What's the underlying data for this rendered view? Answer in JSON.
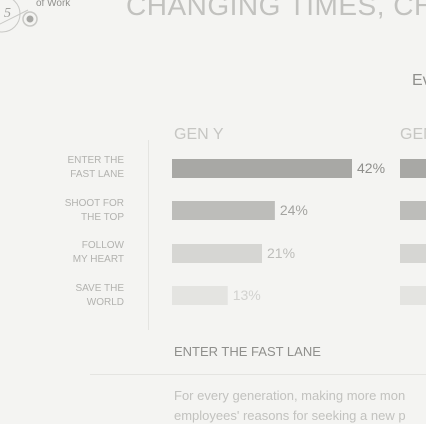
{
  "header": {
    "logo_number": "5",
    "logo_caption": "of Work",
    "title": "CHANGING TIMES, CH",
    "cut_text": "Ev"
  },
  "chart_data": {
    "type": "bar",
    "orientation": "horizontal",
    "categories": [
      [
        "ENTER THE",
        "FAST LANE"
      ],
      [
        "SHOOT FOR",
        "THE TOP"
      ],
      [
        "FOLLOW",
        "MY HEART"
      ],
      [
        "SAVE THE",
        "WORLD"
      ]
    ],
    "series": [
      {
        "name": "GEN Y",
        "values": [
          42,
          24,
          21,
          13
        ],
        "value_labels": [
          "42%",
          "24%",
          "21%",
          "13%"
        ]
      },
      {
        "name": "GEN",
        "values": [
          null,
          null,
          null,
          null
        ],
        "value_labels": [
          "",
          "",
          "",
          ""
        ]
      }
    ],
    "colors": [
      "#a8a8a5",
      "#bdbdba",
      "#d6d6d3",
      "#e4e4e1"
    ],
    "label_colors": [
      "#8f8f8c",
      "#a4a4a1",
      "#bdbdba",
      "#d2d2cf"
    ],
    "xlim": [
      0,
      75
    ],
    "grid": false
  },
  "section": {
    "title": "ENTER THE FAST LANE",
    "body_lines": [
      "For every generation, making more mon",
      "employees' reasons for seeking a new p"
    ]
  }
}
